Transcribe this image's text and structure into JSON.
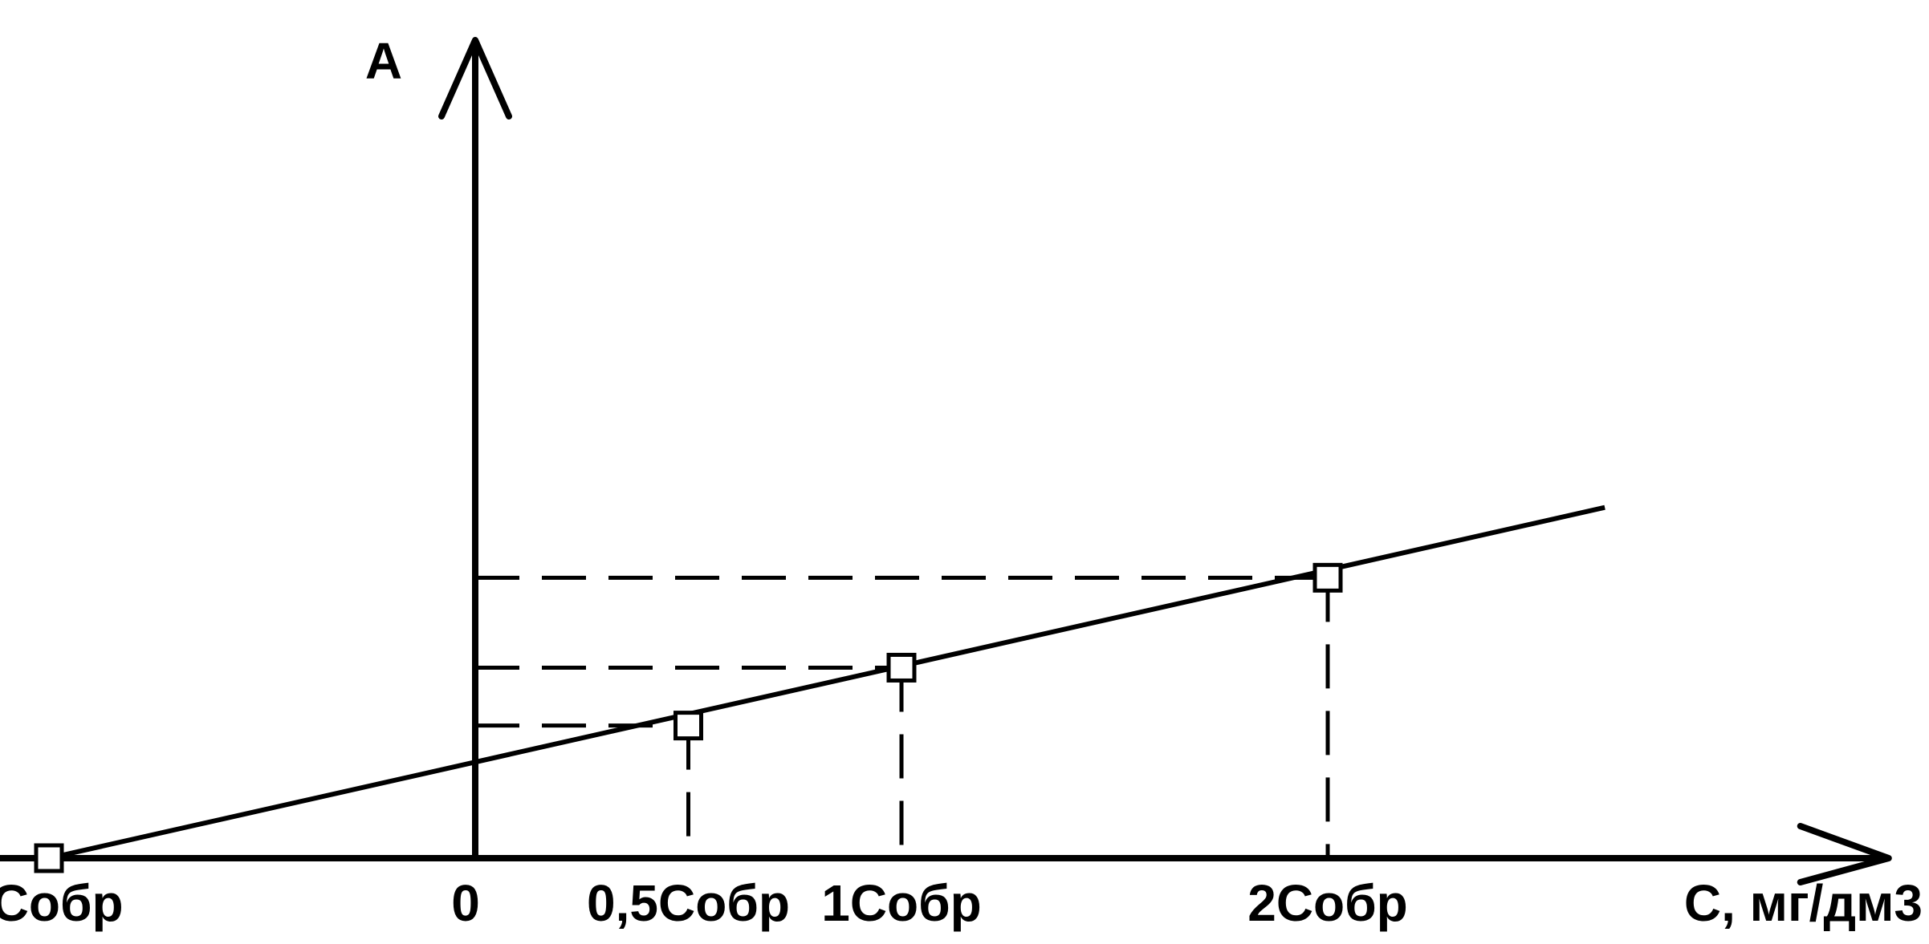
{
  "chart_data": {
    "type": "line",
    "title": "",
    "ylabel": "A",
    "xlabel": "С, мг/дм3",
    "origin_label": "0",
    "categories": [
      "-Собр",
      "0,5Собр",
      "1Собр",
      "2Собр"
    ],
    "x": [
      -1,
      0.5,
      1,
      2
    ],
    "y": [
      0,
      1.49,
      2.14,
      3.15
    ],
    "intercept": 0.72,
    "xlim": [
      -1.3,
      3.25
    ],
    "ylim": [
      0,
      4.1
    ],
    "series": [
      {
        "x": [
          -1,
          0.5,
          1,
          2
        ],
        "y": [
          0,
          1.49,
          2.14,
          3.15
        ],
        "marker": "square"
      }
    ],
    "grid": false
  }
}
